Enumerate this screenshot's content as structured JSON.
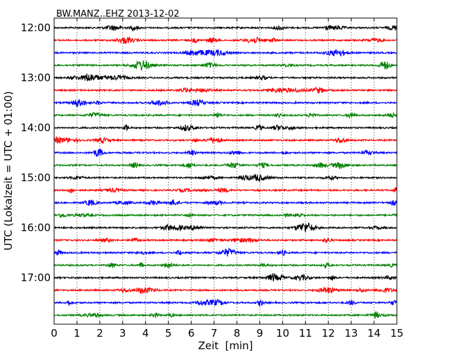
{
  "chart_data": {
    "type": "line",
    "title": "BW.MANZ..EHZ 2013-12-02",
    "xlabel": "Zeit  [min]",
    "ylabel": "UTC (Lokalzeit = UTC + 01:00)",
    "xlim": [
      0,
      15
    ],
    "xticks": [
      0,
      1,
      2,
      3,
      4,
      5,
      6,
      7,
      8,
      9,
      10,
      11,
      12,
      13,
      14,
      15
    ],
    "yticks": [
      "12:00",
      "13:00",
      "14:00",
      "15:00",
      "16:00",
      "17:00"
    ],
    "grid": "vertical-dotted",
    "trace_minutes": 15,
    "trace_colors": [
      "#000000",
      "#ff0000",
      "#0000ff",
      "#008000"
    ],
    "traces": [
      "12:00",
      "12:15",
      "12:30",
      "12:45",
      "13:00",
      "13:15",
      "13:30",
      "13:45",
      "14:00",
      "14:15",
      "14:30",
      "14:45",
      "15:00",
      "15:15",
      "15:30",
      "15:45",
      "16:00",
      "16:15",
      "16:30",
      "16:45",
      "17:00",
      "17:15",
      "17:30",
      "17:45"
    ]
  }
}
